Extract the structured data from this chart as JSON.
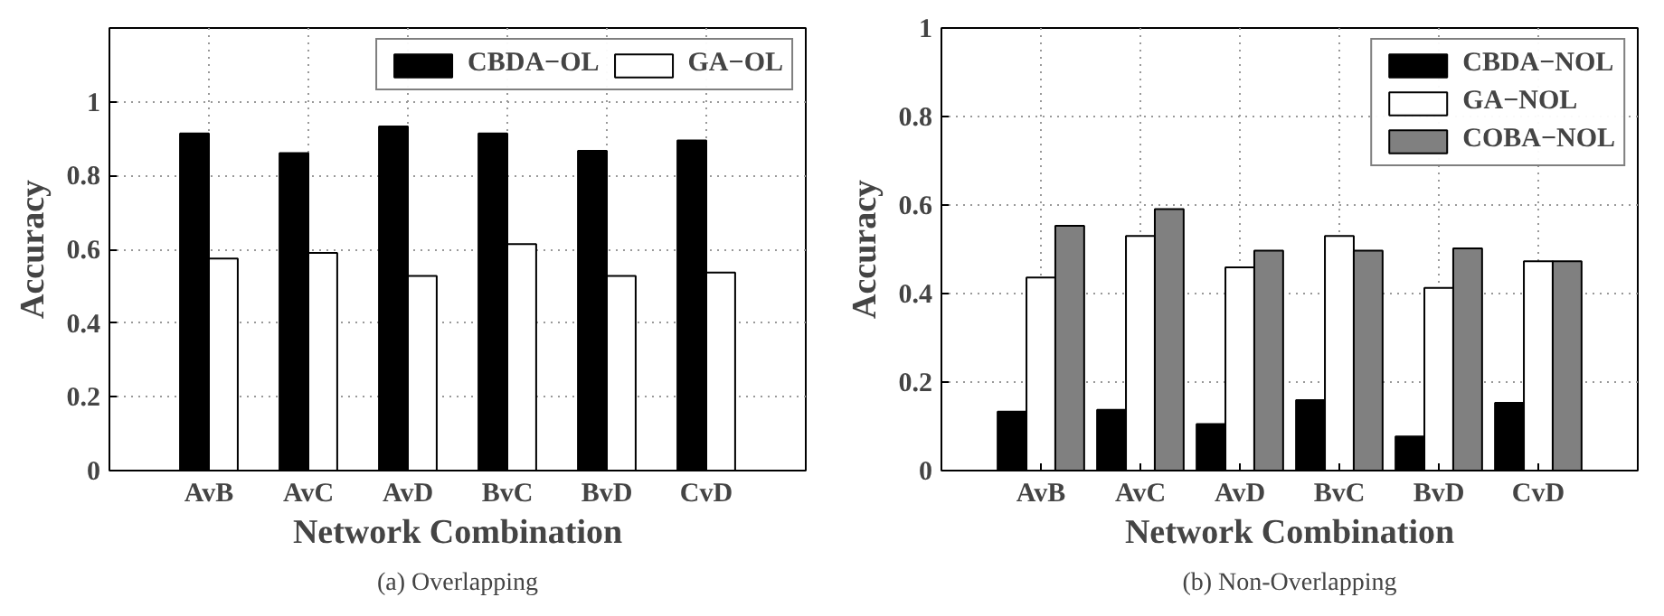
{
  "chart_data": [
    {
      "type": "bar",
      "xlabel": "Network Combination",
      "ylabel": "Accuracy",
      "annotations": [
        "(a) Overlapping"
      ],
      "categories": [
        "AvB",
        "AvC",
        "AvD",
        "BvC",
        "BvD",
        "CvD"
      ],
      "series": [
        {
          "name": "CBDA−OL",
          "color": "#000000",
          "values": [
            0.914,
            0.861,
            0.933,
            0.914,
            0.867,
            0.895
          ]
        },
        {
          "name": "GA−OL",
          "color": "#ffffff",
          "values": [
            0.575,
            0.59,
            0.528,
            0.614,
            0.528,
            0.537
          ]
        }
      ],
      "ylim": [
        0,
        1.2
      ],
      "yticks": [
        0,
        0.2,
        0.4,
        0.6,
        0.8,
        1
      ],
      "grid": true,
      "legend": "top right"
    },
    {
      "type": "bar",
      "xlabel": "Network Combination",
      "ylabel": "Accuracy",
      "annotations": [
        "(b) Non-Overlapping"
      ],
      "categories": [
        "AvB",
        "AvC",
        "AvD",
        "BvC",
        "BvD",
        "CvD"
      ],
      "series": [
        {
          "name": "CBDA−NOL",
          "color": "#000000",
          "values": [
            0.133,
            0.137,
            0.105,
            0.159,
            0.077,
            0.153
          ]
        },
        {
          "name": "GA−NOL",
          "color": "#ffffff",
          "values": [
            0.436,
            0.53,
            0.459,
            0.53,
            0.413,
            0.473
          ]
        },
        {
          "name": "COBA−NOL",
          "color": "#808080",
          "values": [
            0.553,
            0.591,
            0.497,
            0.497,
            0.502,
            0.473
          ]
        }
      ],
      "ylim": [
        0,
        1
      ],
      "yticks": [
        0,
        0.2,
        0.4,
        0.6,
        0.8,
        1
      ],
      "grid": true,
      "legend": "top right"
    }
  ]
}
